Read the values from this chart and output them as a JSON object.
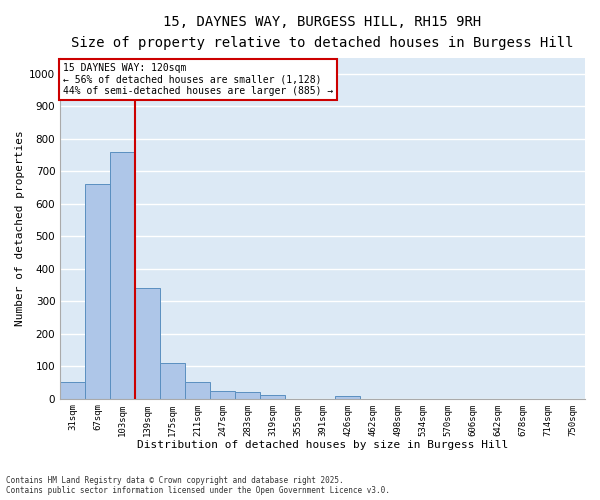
{
  "title_line1": "15, DAYNES WAY, BURGESS HILL, RH15 9RH",
  "title_line2": "Size of property relative to detached houses in Burgess Hill",
  "xlabel": "Distribution of detached houses by size in Burgess Hill",
  "ylabel": "Number of detached properties",
  "categories": [
    "31sqm",
    "67sqm",
    "103sqm",
    "139sqm",
    "175sqm",
    "211sqm",
    "247sqm",
    "283sqm",
    "319sqm",
    "355sqm",
    "391sqm",
    "426sqm",
    "462sqm",
    "498sqm",
    "534sqm",
    "570sqm",
    "606sqm",
    "642sqm",
    "678sqm",
    "714sqm",
    "750sqm"
  ],
  "values": [
    50,
    660,
    760,
    340,
    110,
    50,
    25,
    20,
    13,
    0,
    0,
    7,
    0,
    0,
    0,
    0,
    0,
    0,
    0,
    0,
    0
  ],
  "bar_color": "#aec6e8",
  "bar_edge_color": "#5a8fc0",
  "background_color": "#dce9f5",
  "grid_color": "#ffffff",
  "vline_color": "#cc0000",
  "vline_x": 2.5,
  "annotation_title": "15 DAYNES WAY: 120sqm",
  "annotation_line1": "← 56% of detached houses are smaller (1,128)",
  "annotation_line2": "44% of semi-detached houses are larger (885) →",
  "annotation_box_color": "#cc0000",
  "ylim": [
    0,
    1050
  ],
  "yticks": [
    0,
    100,
    200,
    300,
    400,
    500,
    600,
    700,
    800,
    900,
    1000
  ],
  "footnote1": "Contains HM Land Registry data © Crown copyright and database right 2025.",
  "footnote2": "Contains public sector information licensed under the Open Government Licence v3.0.",
  "fig_bg": "#ffffff",
  "title_fontsize": 10,
  "subtitle_fontsize": 9
}
